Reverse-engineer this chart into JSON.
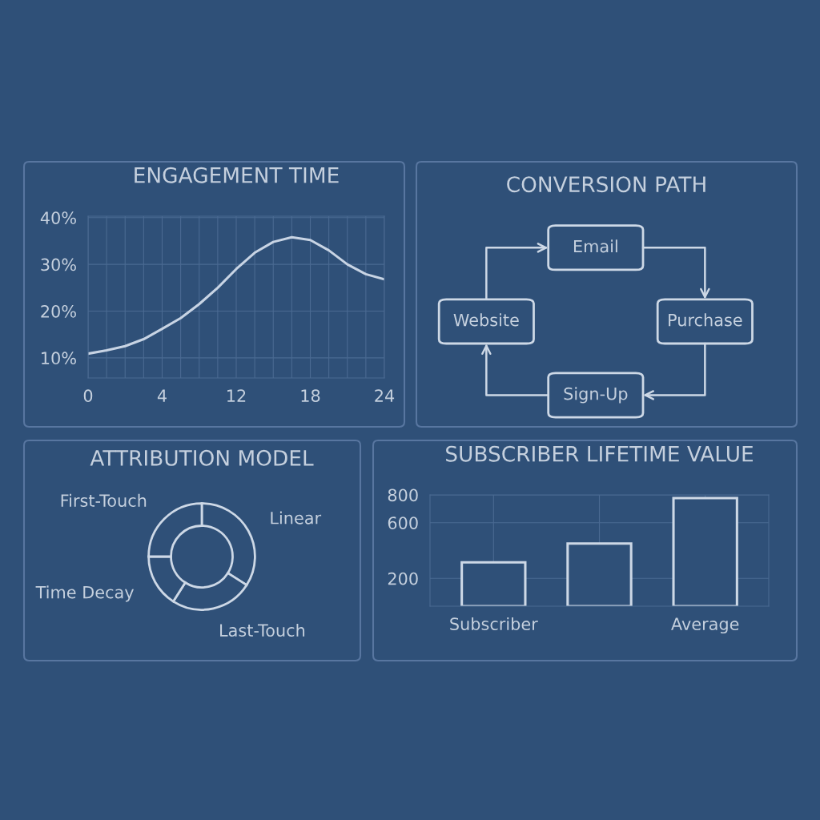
{
  "chart_data": [
    {
      "type": "line",
      "title": "ENGAGEMENT TIME",
      "categories": [
        "0",
        null,
        null,
        null,
        "4",
        null,
        null,
        null,
        "12",
        null,
        null,
        null,
        "18",
        null,
        null,
        null,
        "24"
      ],
      "series": [
        {
          "color": "#c8d4e4",
          "values": [
            10.9,
            11.6,
            12.5,
            14,
            16.2,
            18.5,
            21.5,
            25,
            29,
            32.5,
            34.8,
            35.8,
            35.2,
            33,
            30,
            27.9,
            26.8
          ]
        }
      ],
      "ylim": [
        5.7,
        40.3
      ],
      "yticks": [
        {
          "value": 10,
          "label": "10%"
        },
        {
          "value": 20,
          "label": "20%"
        },
        {
          "value": 30,
          "label": "30%"
        },
        {
          "value": 40,
          "label": "40%"
        }
      ],
      "grid": true
    },
    {
      "type": "other",
      "title": "CONVERSION PATH",
      "categories": [
        "Email",
        "Purchase",
        "Sign-Up",
        "Website"
      ]
    },
    {
      "type": "donut",
      "title": "ATTRIBUTION MODEL",
      "categories": [
        "Linear",
        "Last-Touch",
        "Time Decay",
        "First-Touch"
      ],
      "values": [
        34,
        25,
        16,
        25
      ],
      "colors": [
        "#2f5078",
        "#2f5078",
        "#2f5078",
        "#2f5078"
      ]
    },
    {
      "type": "bar",
      "title": "SUBSCRIBER LIFETIME VALUE",
      "categories": [
        "Subscriber",
        null,
        "Average"
      ],
      "values": [
        315,
        450,
        777
      ],
      "color": "#2f5078",
      "ylim": [
        0,
        800
      ],
      "yticks": [
        200,
        600,
        800
      ],
      "grid": true
    }
  ]
}
